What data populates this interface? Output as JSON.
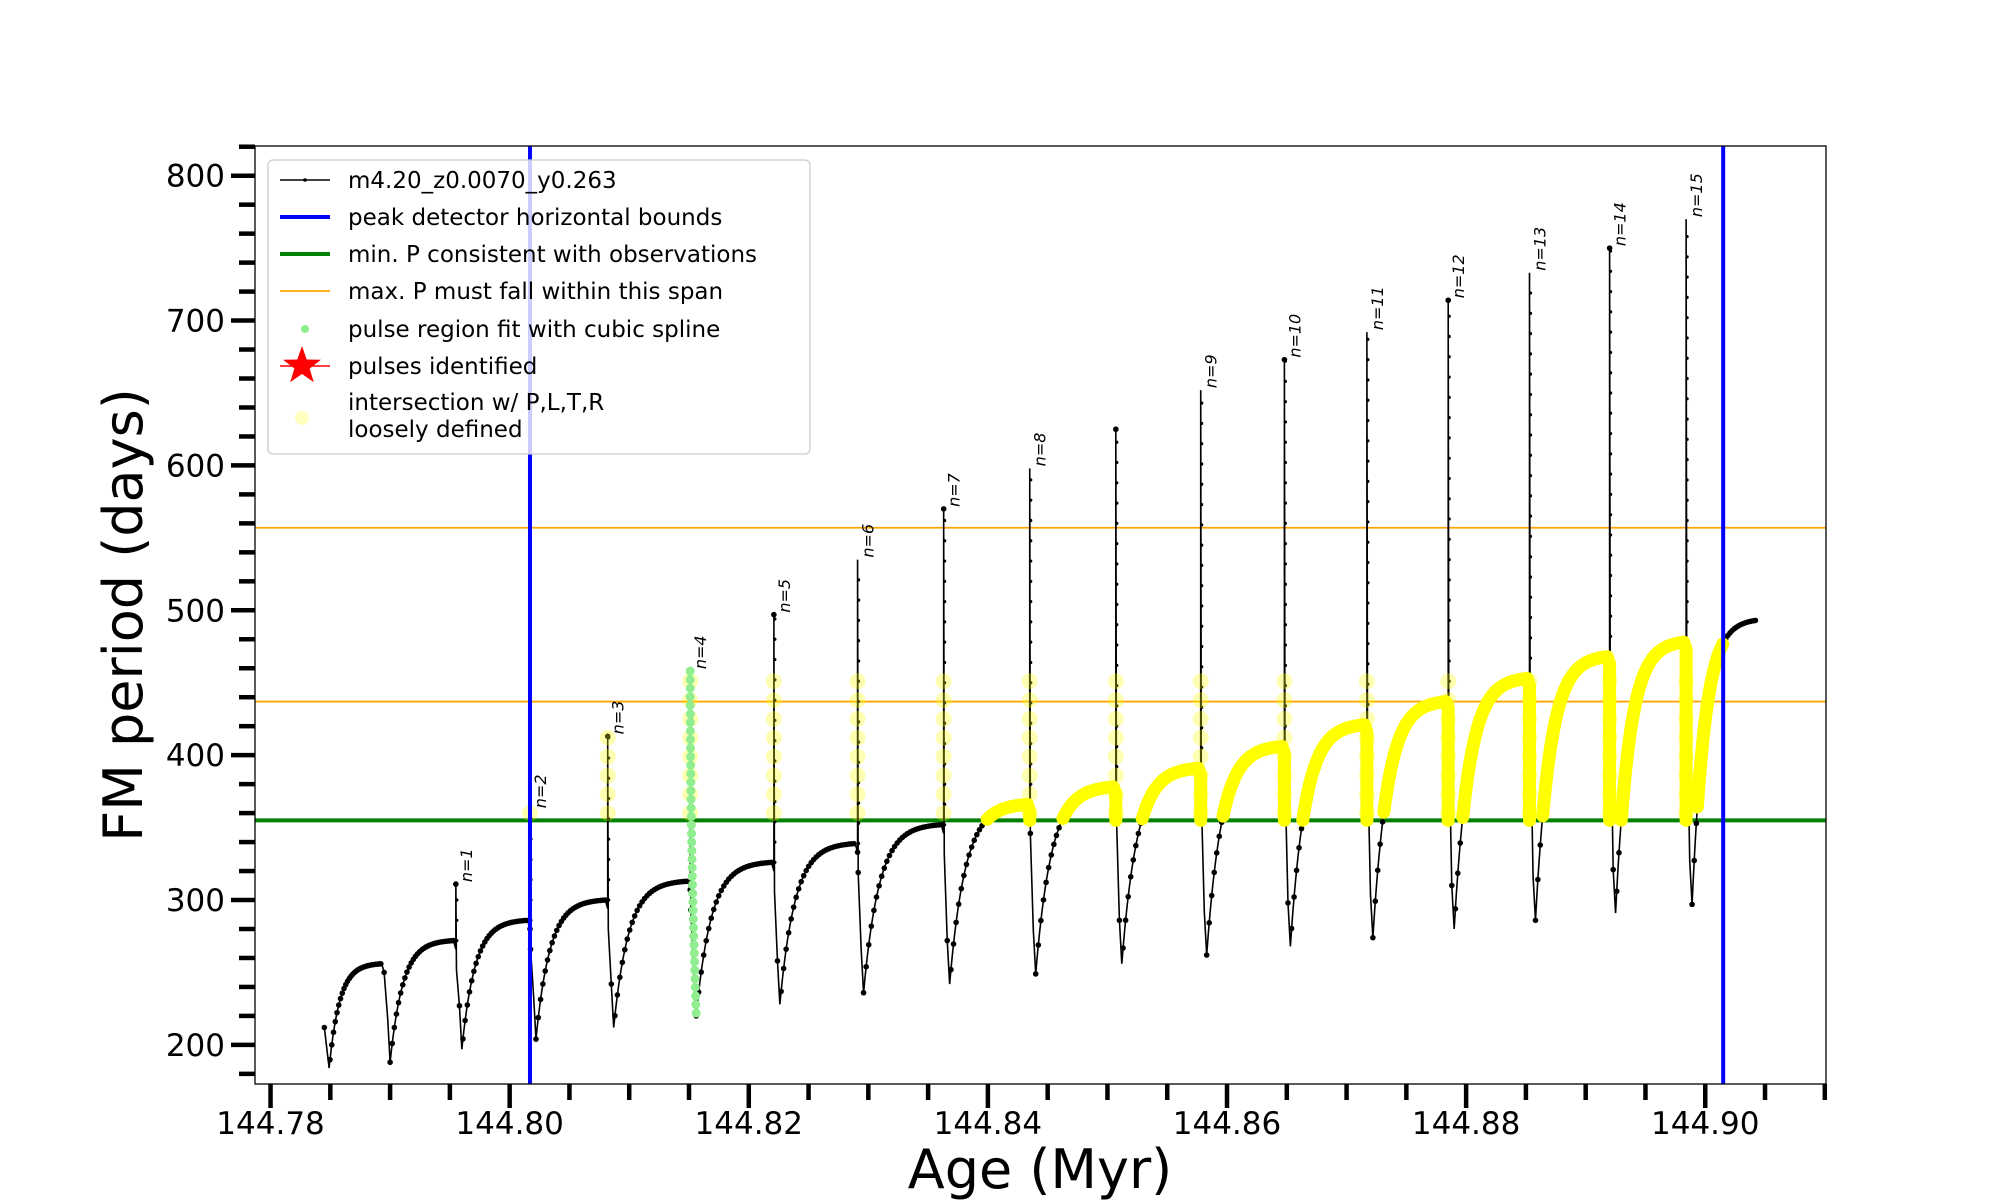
{
  "chart_data": {
    "type": "line",
    "xlabel": "Age (Myr)",
    "ylabel": "FM period (days)",
    "xlim": [
      144.7787,
      144.9101
    ],
    "ylim": [
      173,
      820.5
    ],
    "x_ticks": [
      144.78,
      144.8,
      144.82,
      144.84,
      144.86,
      144.88,
      144.9
    ],
    "x_tick_labels": [
      "144.78",
      "144.80",
      "144.82",
      "144.84",
      "144.86",
      "144.88",
      "144.90"
    ],
    "x_minor_step": 0.005,
    "y_ticks": [
      200,
      300,
      400,
      500,
      600,
      700,
      800
    ],
    "y_tick_labels": [
      "200",
      "300",
      "400",
      "500",
      "600",
      "700",
      "800"
    ],
    "y_minor_step": 20,
    "grid": false,
    "legend_position": "top-left",
    "legend": [
      "m4.20_z0.0070_y0.263",
      "peak detector horizontal bounds",
      "min. P consistent with observations",
      "max. P must fall within this span",
      "pulse region fit with cubic spline",
      "pulses identified",
      "intersection w/ P,L,T,R",
      "loosely defined"
    ],
    "colors": {
      "track": "#000000",
      "bounds": "#0000ff",
      "min_p": "#008000",
      "max_p_span": "#ffa500",
      "spline": "#90ee90",
      "pulses": "#ff0000",
      "intersection": "#ffff00"
    },
    "peak_detector_bounds": [
      144.8017,
      144.9015
    ],
    "min_p_line": 355,
    "max_p_span": [
      437,
      557
    ],
    "track": {
      "name": "m4.20_z0.0070_y0.263",
      "start": {
        "age": 144.7845,
        "P": 212
      },
      "first_min": 184,
      "events": [
        {
          "age": 144.7895,
          "peak": null,
          "plateau": 256,
          "min": 188,
          "label": ""
        },
        {
          "age": 144.7955,
          "peak": 311,
          "plateau": 272,
          "min": 197,
          "label": "n=1"
        },
        {
          "age": 144.8017,
          "peak": 362,
          "plateau": 286,
          "min": 204,
          "label": "n=2"
        },
        {
          "age": 144.8082,
          "peak": 413,
          "plateau": 300,
          "min": 212,
          "label": "n=3"
        },
        {
          "age": 144.8151,
          "peak": 458,
          "plateau": 313,
          "min": 220,
          "label": "n=4"
        },
        {
          "age": 144.8221,
          "peak": 497,
          "plateau": 326,
          "min": 228,
          "label": "n=5"
        },
        {
          "age": 144.8291,
          "peak": 535,
          "plateau": 339,
          "min": 236,
          "label": "n=6"
        },
        {
          "age": 144.8363,
          "peak": 570,
          "plateau": 352,
          "min": 242,
          "label": "n=7"
        },
        {
          "age": 144.8435,
          "peak": 598,
          "plateau": 366,
          "min": 249,
          "label": "n=8"
        },
        {
          "age": 144.8507,
          "peak": 625,
          "plateau": 378,
          "min": 256,
          "label": ""
        },
        {
          "age": 144.8578,
          "peak": 652,
          "plateau": 391,
          "min": 262,
          "label": "n=9"
        },
        {
          "age": 144.8648,
          "peak": 673,
          "plateau": 406,
          "min": 268,
          "label": "n=10"
        },
        {
          "age": 144.8717,
          "peak": 692,
          "plateau": 421,
          "min": 274,
          "label": "n=11"
        },
        {
          "age": 144.8785,
          "peak": 714,
          "plateau": 437,
          "min": 280,
          "label": "n=12"
        },
        {
          "age": 144.8853,
          "peak": 733,
          "plateau": 453,
          "min": 286,
          "label": "n=13"
        },
        {
          "age": 144.892,
          "peak": 750,
          "plateau": 468,
          "min": 291,
          "label": "n=14"
        },
        {
          "age": 144.8984,
          "peak": 770,
          "plateau": 478,
          "min": 297,
          "label": "n=15"
        }
      ],
      "end": {
        "age": 144.9042,
        "P": 493
      }
    },
    "spline_fit_pulse": "n=4",
    "intersection_age_range": [
      144.8385,
      144.9015
    ]
  }
}
